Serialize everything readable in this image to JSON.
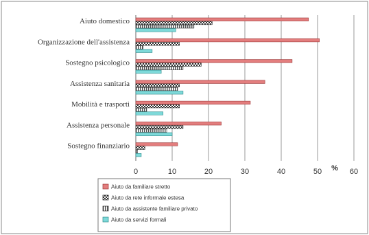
{
  "chart_data": {
    "type": "bar",
    "orientation": "horizontal",
    "categories": [
      "Aiuto domestico",
      "Organizzazione dell'assistenza",
      "Sostegno psicologico",
      "Assistenza sanitaria",
      "Mobilità e trasporti",
      "Assistenza personale",
      "Sostegno finanziario"
    ],
    "series": [
      {
        "name": "Aiuto da familiare stretto",
        "values": [
          47.5,
          50.5,
          43,
          35.5,
          31.5,
          23.5,
          11.5
        ]
      },
      {
        "name": "Aiuto da rete informale estesa",
        "values": [
          21,
          12,
          18,
          12,
          12,
          13,
          2.5
        ]
      },
      {
        "name": "Aiuto da assistente familiare privato",
        "values": [
          16,
          2,
          13,
          11.5,
          3,
          8.5,
          0.5
        ]
      },
      {
        "name": "Aiuto da servizi formali",
        "values": [
          11,
          4.5,
          7,
          13,
          7.5,
          10,
          1.5
        ]
      }
    ],
    "xlim": [
      0,
      60
    ],
    "xticks": [
      "0",
      "10",
      "20",
      "30",
      "40",
      "50",
      "60"
    ],
    "xunit": "%",
    "grid": true,
    "legend": "bottom-left",
    "colors": {
      "s0_fill": "#e37e7e",
      "s0_stroke": "#9a3434",
      "s1_fill": "#555555",
      "s1_stroke": "#222222",
      "s2_fill": "#8f8f8f",
      "s2_stroke": "#333333",
      "s3_fill": "#7ed9d9",
      "s3_stroke": "#2e8c8c"
    }
  }
}
